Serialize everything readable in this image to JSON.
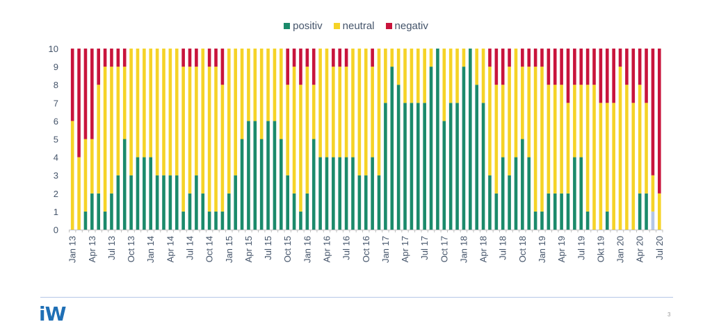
{
  "chart_data": {
    "type": "bar",
    "stacked": true,
    "title": "",
    "xlabel": "",
    "ylabel": "",
    "ylim": [
      0,
      10
    ],
    "yticks": [
      0,
      1,
      2,
      3,
      4,
      5,
      6,
      7,
      8,
      9,
      10
    ],
    "grid": false,
    "legend_position": "top-center",
    "categories": [
      "Jan 13",
      "Feb 13",
      "Mar 13",
      "Apr 13",
      "May 13",
      "Jun 13",
      "Jul 13",
      "Aug 13",
      "Sep 13",
      "Oct 13",
      "Nov 13",
      "Dec 13",
      "Jan 14",
      "Feb 14",
      "Mar 14",
      "Apr 14",
      "May 14",
      "Jun 14",
      "Jul 14",
      "Aug 14",
      "Sep 14",
      "Oct 14",
      "Nov 14",
      "Dec 14",
      "Jan 15",
      "Feb 15",
      "Mar 15",
      "Apr 15",
      "May 15",
      "Jun 15",
      "Jul 15",
      "Aug 15",
      "Sep 15",
      "Oct 15",
      "Nov 15",
      "Dec 15",
      "Jan 16",
      "Feb 16",
      "Mar 16",
      "Apr 16",
      "May 16",
      "Jun 16",
      "Jul 16",
      "Aug 16",
      "Sep 16",
      "Oct 16",
      "Nov 16",
      "Dec 16",
      "Jan 17",
      "Feb 17",
      "Mar 17",
      "Apr 17",
      "May 17",
      "Jun 17",
      "Jul 17",
      "Aug 17",
      "Sep 17",
      "Oct 17",
      "Nov 17",
      "Dec 17",
      "Jan 18",
      "Feb 18",
      "Mar 18",
      "Apr 18",
      "May 18",
      "Jun 18",
      "Jul 18",
      "Aug 18",
      "Sep 18",
      "Oct 18",
      "Nov 18",
      "Dec 18",
      "Jan 19",
      "Feb 19",
      "Mar 19",
      "Apr 19",
      "May 19",
      "Jun 19",
      "Jul 19",
      "Aug 19",
      "Sep 19",
      "Okt 19",
      "Nov 19",
      "Dec 19",
      "Jan 20",
      "Feb 20",
      "Mar 20",
      "Apr 20",
      "May 20",
      "Jun 20",
      "Jul 20"
    ],
    "xtick_labels": [
      "Jan 13",
      "Apr 13",
      "Jul 13",
      "Oct 13",
      "Jan 14",
      "Apr 14",
      "Jul 14",
      "Oct 14",
      "Jan 15",
      "Apr 15",
      "Jul 15",
      "Oct 15",
      "Jan 16",
      "Apr 16",
      "Jul 16",
      "Oct 16",
      "Jan 17",
      "Apr 17",
      "Jul 17",
      "Oct 17",
      "Jan 18",
      "Apr 18",
      "Jul 18",
      "Oct 18",
      "Jan 19",
      "Apr 19",
      "Jul 19",
      "Okt 19",
      "Jan 20",
      "Apr 20",
      "Jul 20"
    ],
    "xtick_every": 3,
    "series": [
      {
        "name": "positiv",
        "color": "#1b8a6b",
        "values": [
          0,
          0,
          1,
          2,
          2,
          1,
          2,
          3,
          5,
          3,
          4,
          4,
          4,
          3,
          3,
          3,
          3,
          1,
          2,
          3,
          2,
          1,
          1,
          1,
          2,
          3,
          5,
          6,
          6,
          5,
          6,
          6,
          5,
          3,
          2,
          1,
          2,
          5,
          4,
          4,
          4,
          4,
          4,
          4,
          3,
          3,
          4,
          3,
          7,
          9,
          8,
          7,
          7,
          7,
          7,
          9,
          10,
          6,
          7,
          7,
          9,
          10,
          8,
          7,
          3,
          2,
          4,
          3,
          4,
          5,
          4,
          1,
          1,
          2,
          2,
          2,
          2,
          4,
          4,
          1,
          0,
          0,
          1,
          0,
          0,
          0,
          0,
          2,
          2,
          1,
          0
        ],
        "highlight": {
          "index": 89,
          "color": "#b4c7e7"
        }
      },
      {
        "name": "neutral",
        "color": "#f5d327",
        "values": [
          6,
          4,
          4,
          3,
          6,
          8,
          7,
          6,
          4,
          7,
          6,
          6,
          6,
          7,
          7,
          7,
          7,
          8,
          7,
          6,
          8,
          8,
          8,
          7,
          8,
          7,
          5,
          4,
          4,
          5,
          4,
          4,
          5,
          5,
          7,
          7,
          7,
          3,
          6,
          6,
          5,
          5,
          5,
          6,
          7,
          7,
          5,
          7,
          3,
          1,
          2,
          3,
          3,
          3,
          3,
          1,
          0,
          4,
          3,
          3,
          1,
          0,
          2,
          3,
          6,
          6,
          4,
          6,
          6,
          4,
          5,
          8,
          8,
          6,
          6,
          6,
          5,
          4,
          4,
          7,
          8,
          7,
          6,
          7,
          9,
          8,
          7,
          6,
          5,
          2,
          2
        ]
      },
      {
        "name": "negativ",
        "color": "#c8143c",
        "values": [
          4,
          6,
          5,
          5,
          2,
          1,
          1,
          1,
          1,
          0,
          0,
          0,
          0,
          0,
          0,
          0,
          0,
          1,
          1,
          1,
          0,
          1,
          1,
          2,
          0,
          0,
          0,
          0,
          0,
          0,
          0,
          0,
          0,
          2,
          1,
          2,
          1,
          2,
          0,
          0,
          1,
          1,
          1,
          0,
          0,
          0,
          1,
          0,
          0,
          0,
          0,
          0,
          0,
          0,
          0,
          0,
          0,
          0,
          0,
          0,
          0,
          0,
          0,
          0,
          1,
          2,
          2,
          1,
          0,
          1,
          1,
          1,
          1,
          2,
          2,
          2,
          3,
          2,
          2,
          2,
          2,
          3,
          3,
          3,
          1,
          2,
          3,
          2,
          3,
          7,
          8
        ]
      }
    ]
  },
  "footer": {
    "logo_text": "iW",
    "page_number": "3"
  }
}
